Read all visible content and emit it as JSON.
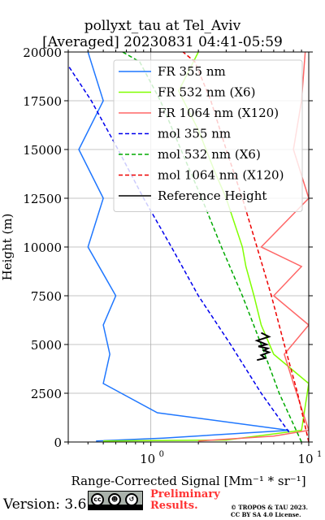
{
  "title_line1": "pollyxt_tau at Tel_Aviv",
  "title_line2": "[Averaged] 20230831 04:41-05:59",
  "version": "Version: 3.6",
  "preliminary": [
    "Preliminary",
    "Results."
  ],
  "copyright": [
    "© TROPOS & TAU 2023.",
    "CC BY SA 4.0 License."
  ],
  "cc_badge": [
    "cc",
    "BY",
    "SA"
  ],
  "chart_data": {
    "type": "line",
    "xlabel": "Range-Corrected Signal [Mm⁻¹ * sr⁻¹]",
    "ylabel": "Height (m)",
    "xscale": "log",
    "xlim": [
      0.3,
      10
    ],
    "ylim": [
      0,
      20000
    ],
    "x_tick_labels": [
      {
        "value": 1,
        "label": "10",
        "exp": "0"
      },
      {
        "value": 10,
        "label": "10",
        "exp": "1"
      }
    ],
    "y_ticks": [
      0,
      2500,
      5000,
      7500,
      10000,
      12500,
      15000,
      17500,
      20000
    ],
    "grid": true,
    "legend_position": "upper-right",
    "series": [
      {
        "name": "FR 355 nm",
        "style": "solid",
        "color": "#1f77ff",
        "x": [
          0.45,
          1.2,
          7.5,
          1.1,
          0.5,
          0.55,
          0.5,
          0.6,
          0.4,
          0.5,
          0.35,
          0.5,
          0.4
        ],
        "y": [
          50,
          200,
          600,
          1500,
          3000,
          4500,
          6000,
          7500,
          10000,
          12500,
          15000,
          17500,
          20000
        ]
      },
      {
        "name": "FR 532 nm (X6)",
        "style": "solid",
        "color": "#80ff00",
        "x": [
          0.5,
          3,
          9,
          10,
          6,
          5,
          4.5,
          4,
          3.8,
          3,
          2.5,
          2,
          1.5,
          2
        ],
        "y": [
          50,
          100,
          600,
          3000,
          4500,
          6000,
          7500,
          9000,
          10000,
          12500,
          14000,
          16000,
          18000,
          20000
        ]
      },
      {
        "name": "FR 1064 nm (X120)",
        "style": "solid",
        "color": "#ff6666",
        "x": [
          2,
          6,
          10,
          8,
          7,
          10,
          6,
          9,
          5,
          10,
          8,
          9,
          9.5
        ],
        "y": [
          50,
          300,
          600,
          3000,
          4500,
          6000,
          7500,
          9000,
          10000,
          12500,
          15000,
          17500,
          20000
        ]
      },
      {
        "name": "mol 355 nm",
        "style": "dashed",
        "color": "#0000ee",
        "x": [
          7.5,
          5,
          3.2,
          2.0,
          1.35,
          0.9,
          0.62,
          0.42,
          0.3
        ],
        "y": [
          500,
          2500,
          5000,
          7500,
          10000,
          12500,
          15000,
          17500,
          19300
        ]
      },
      {
        "name": "mol 532 nm (X6)",
        "style": "dashed",
        "color": "#00aa00",
        "x": [
          9,
          6.5,
          5,
          3.8,
          2.8,
          2.1,
          1.55,
          1.15,
          0.85,
          0.6
        ],
        "y": [
          0,
          2500,
          5000,
          7500,
          10000,
          12500,
          15000,
          17500,
          19500,
          20200
        ]
      },
      {
        "name": "mol 1064 nm (X120)",
        "style": "dashed",
        "color": "#ee0000",
        "x": [
          10,
          8.5,
          7,
          5.8,
          4.7,
          3.8,
          3.0,
          2.4,
          1.9,
          1.6
        ],
        "y": [
          0,
          2500,
          5000,
          7500,
          10000,
          12500,
          15000,
          17500,
          19500,
          20000
        ]
      },
      {
        "name": "Reference Height",
        "style": "solid",
        "color": "#000000",
        "x": [
          5,
          5.6,
          4.7,
          5.4,
          4.8,
          5.5,
          5.2,
          5.6,
          5.0,
          5.3,
          4.7
        ],
        "y": [
          5600,
          5400,
          5200,
          5000,
          4900,
          4800,
          4700,
          4600,
          4450,
          4300,
          4200
        ]
      }
    ]
  }
}
